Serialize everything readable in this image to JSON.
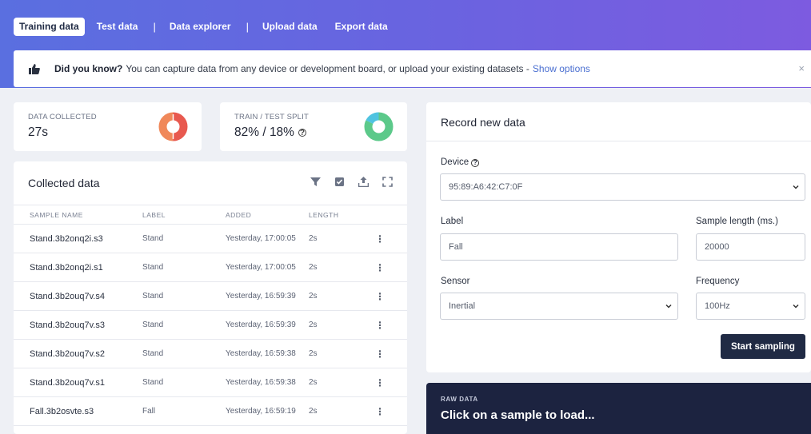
{
  "nav": {
    "tabs": [
      {
        "label": "Training data",
        "active": true
      },
      {
        "label": "Test data"
      },
      {
        "label": "Data explorer"
      },
      {
        "label": "Upload data"
      },
      {
        "label": "Export data"
      }
    ],
    "separator": "|"
  },
  "banner": {
    "icon": "thumbs-up-icon",
    "bold": "Did you know?",
    "text": "You can capture data from any device or development board, or upload your existing datasets -",
    "link": "Show options",
    "close": "×"
  },
  "stats": {
    "data_collected": {
      "label": "DATA COLLECTED",
      "value": "27s",
      "colors": [
        "#e8594f",
        "#f0885a"
      ]
    },
    "train_test": {
      "label": "TRAIN / TEST SPLIT",
      "value": "82% / 18%",
      "help": "?",
      "train_fraction": 0.82,
      "colors": [
        "#5cc98a",
        "#4fc3e0"
      ]
    }
  },
  "collected": {
    "title": "Collected data",
    "icons": [
      "filter-icon",
      "check-square-icon",
      "upload-icon",
      "expand-icon"
    ],
    "columns": [
      "SAMPLE NAME",
      "LABEL",
      "ADDED",
      "LENGTH"
    ],
    "rows": [
      {
        "name": "Stand.3b2onq2i.s3",
        "label": "Stand",
        "added": "Yesterday, 17:00:05",
        "length": "2s"
      },
      {
        "name": "Stand.3b2onq2i.s1",
        "label": "Stand",
        "added": "Yesterday, 17:00:05",
        "length": "2s"
      },
      {
        "name": "Stand.3b2ouq7v.s4",
        "label": "Stand",
        "added": "Yesterday, 16:59:39",
        "length": "2s"
      },
      {
        "name": "Stand.3b2ouq7v.s3",
        "label": "Stand",
        "added": "Yesterday, 16:59:39",
        "length": "2s"
      },
      {
        "name": "Stand.3b2ouq7v.s2",
        "label": "Stand",
        "added": "Yesterday, 16:59:38",
        "length": "2s"
      },
      {
        "name": "Stand.3b2ouq7v.s1",
        "label": "Stand",
        "added": "Yesterday, 16:59:38",
        "length": "2s"
      },
      {
        "name": "Fall.3b2osvte.s3",
        "label": "Fall",
        "added": "Yesterday, 16:59:19",
        "length": "2s"
      }
    ],
    "row_menu": "⋮"
  },
  "record": {
    "title": "Record new data",
    "device_label": "Device",
    "device_help": "?",
    "device_value": "95:89:A6:42:C7:0F",
    "label_label": "Label",
    "label_value": "Fall",
    "sample_length_label": "Sample length (ms.)",
    "sample_length_value": "20000",
    "sensor_label": "Sensor",
    "sensor_value": "Inertial",
    "frequency_label": "Frequency",
    "frequency_value": "100Hz",
    "start_button": "Start sampling"
  },
  "raw": {
    "label": "RAW DATA",
    "text": "Click on a sample to load..."
  }
}
